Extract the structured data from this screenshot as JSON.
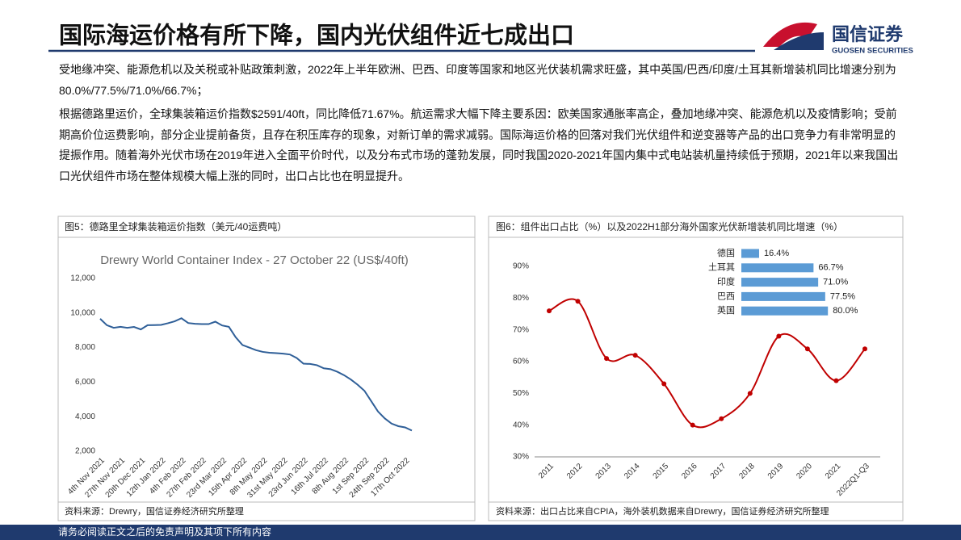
{
  "header": {
    "title": "国际海运价格有所下降，国内光伏组件近七成出口",
    "logo_text": "国信证券",
    "logo_sub": "GUOSEN SECURITIES"
  },
  "paragraphs": [
    "受地缘冲突、能源危机以及关税或补贴政策刺激，2022年上半年欧洲、巴西、印度等国家和地区光伏装机需求旺盛，其中英国/巴西/印度/土耳其新增装机同比增速分别为80.0%/77.5%/71.0%/66.7%；",
    "根据德路里运价，全球集装箱运价指数$2591/40ft，同比降低71.67%。航运需求大幅下降主要系因：欧美国家通胀率高企，叠加地缘冲突、能源危机以及疫情影响；受前期高价位运费影响，部分企业提前备货，且存在积压库存的现象，对新订单的需求减弱。国际海运价格的回落对我们光伏组件和逆变器等产品的出口竞争力有非常明显的提振作用。随着海外光伏市场在2019年进入全面平价时代，以及分布式市场的蓬勃发展，同时我国2020-2021年国内集中式电站装机量持续低于预期，2021年以来我国出口光伏组件市场在整体规模大幅上涨的同时，出口占比也在明显提升。"
  ],
  "chart_data": [
    {
      "type": "line",
      "caption": "图5：德路里全球集装箱运价指数（美元/40运费吨）",
      "title": "Drewry World Container Index - 27 October 22 (US$/40ft)",
      "source": "资料来源：Drewry，国信证券经济研究所整理",
      "categories": [
        "4th Nov 2021",
        null,
        null,
        "27th Nov 2021",
        null,
        null,
        "20th Dec 2021",
        null,
        null,
        "12th Jan 2022",
        null,
        null,
        "4th Feb 2022",
        null,
        null,
        "27th Feb 2022",
        null,
        null,
        "23rd Mar 2022",
        null,
        null,
        "15th Apr 2022",
        null,
        null,
        "8th May 2022",
        null,
        null,
        "31st May 2022",
        null,
        null,
        "23rd Jun 2022",
        null,
        null,
        "16th Jul 2022",
        null,
        null,
        "8th Aug 2022",
        null,
        null,
        "1st Sep 2022",
        null,
        null,
        "24th Sep 2022",
        null,
        null,
        "17th Oct 2022",
        null
      ],
      "values": [
        9669,
        9293,
        9146,
        9204,
        9143,
        9195,
        9051,
        9293,
        9300,
        9312,
        9408,
        9521,
        9698,
        9420,
        9380,
        9360,
        9357,
        9500,
        9280,
        9200,
        8600,
        8150,
        8000,
        7850,
        7750,
        7700,
        7680,
        7650,
        7600,
        7400,
        7070,
        7050,
        6980,
        6800,
        6750,
        6600,
        6400,
        6150,
        5850,
        5500,
        4900,
        4300,
        3900,
        3600,
        3450,
        3380,
        3196
      ],
      "color": "#2f5f98",
      "grid": false,
      "ylim": [
        2000,
        12000
      ],
      "yticks": [
        {
          "value": 2000,
          "label": "2,000"
        },
        {
          "value": 4000,
          "label": "4,000"
        },
        {
          "value": 6000,
          "label": "6,000"
        },
        {
          "value": 8000,
          "label": "8,000"
        },
        {
          "value": 10000,
          "label": "10,000"
        },
        {
          "value": 12000,
          "label": "12,000"
        }
      ]
    },
    {
      "type": "line",
      "caption": "图6：组件出口占比（%）以及2022H1部分海外国家光伏新增装机同比增速（%）",
      "source": "资料来源：出口占比来自CPIA，海外装机数据来自Drewry，国信证券经济研究所整理",
      "categories": [
        "2011",
        "2012",
        "2013",
        "2014",
        "2015",
        "2016",
        "2017",
        "2018",
        "2019",
        "2020",
        "2021",
        "2022Q1-Q3"
      ],
      "values": [
        76,
        79,
        61,
        62,
        53,
        40,
        42,
        50,
        68,
        64,
        54,
        64
      ],
      "color": "#c00000",
      "smooth": true,
      "markers": true,
      "grid": false,
      "ylim": [
        30,
        90
      ],
      "yticks": [
        {
          "value": 30,
          "label": "30%"
        },
        {
          "value": 40,
          "label": "40%"
        },
        {
          "value": 50,
          "label": "50%"
        },
        {
          "value": 60,
          "label": "60%"
        },
        {
          "value": 70,
          "label": "70%"
        },
        {
          "value": 80,
          "label": "80%"
        },
        {
          "value": 90,
          "label": "90%"
        }
      ]
    },
    {
      "type": "barh",
      "categories": [
        "德国",
        "土耳其",
        "印度",
        "巴西",
        "英国"
      ],
      "values": [
        16.4,
        66.7,
        71.0,
        77.5,
        80.0
      ],
      "value_labels": [
        "16.4%",
        "66.7%",
        "71.0%",
        "77.5%",
        "80.0%"
      ],
      "color": "#5b9bd5"
    }
  ],
  "footer": "请务必阅读正文之后的免责声明及其项下所有内容"
}
